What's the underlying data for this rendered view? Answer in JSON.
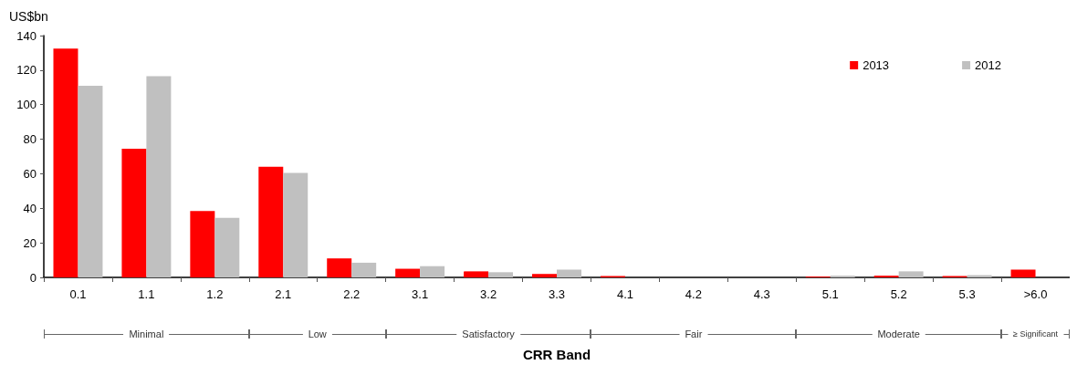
{
  "chart_data": {
    "type": "bar",
    "ylabel": "US$bn",
    "xlabel": "CRR Band",
    "categories": [
      "0.1",
      "1.1",
      "1.2",
      "2.1",
      "2.2",
      "3.1",
      "3.2",
      "3.3",
      "4.1",
      "4.2",
      "4.3",
      "5.1",
      "5.2",
      "5.3",
      ">6.0"
    ],
    "series": [
      {
        "name": "2013",
        "color": "#ff0000",
        "values": [
          132.5,
          74.5,
          38.5,
          64,
          11,
          5,
          3.5,
          2,
          0.8,
          0,
          0,
          0.5,
          1,
          0.8,
          4.5
        ]
      },
      {
        "name": "2012",
        "color": "#c0c0c0",
        "values": [
          111,
          116.5,
          34.5,
          60.5,
          8.5,
          6.5,
          3,
          4.5,
          null,
          0,
          null,
          1,
          3.5,
          1.3,
          null
        ]
      }
    ],
    "ylim": [
      0,
      140
    ],
    "yticks": [
      0,
      20,
      40,
      60,
      80,
      100,
      120,
      140
    ],
    "grid": false,
    "legend": "top right",
    "annotations": [
      "Minimal",
      "Low",
      "Satisfactory",
      "Fair",
      "Moderate",
      "≥ Significant"
    ]
  }
}
